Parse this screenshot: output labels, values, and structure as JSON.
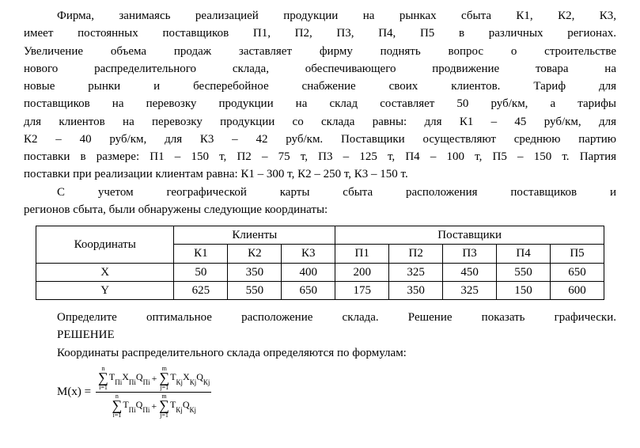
{
  "para1_l1": "Фирма, занимаясь реализацией продукции на рынках сбыта К1, К2, К3,",
  "para1_l2": "имеет постоянных поставщиков П1, П2, П3, П4, П5 в различных регионах.",
  "para1_l3": "Увеличение объема продаж заставляет фирму поднять вопрос о строительстве",
  "para1_l4": "нового распределительного склада, обеспечивающего продвижение товара на",
  "para1_l5": "новые рынки и бесперебойное снабжение своих клиентов. Тариф для",
  "para1_l6": "поставщиков на перевозку продукции на склад составляет 50 руб/км, а тарифы",
  "para1_l7": "для клиентов на перевозку продукции со склада равны: для К1 – 45 руб/км, для",
  "para1_l8": "К2 – 40 руб/км, для К3 – 42 руб/км. Поставщики осуществляют среднюю партию",
  "para1_l9": "поставки в размере: П1 – 150 т, П2 – 75 т, П3 – 125 т, П4 – 100 т, П5 – 150 т. Партия",
  "para1_l10": "поставки при реализации клиентам равна: К1 – 300 т, К2 – 250 т, К3 – 150 т.",
  "para2_l1": "С учетом географической карты сбыта расположения поставщиков и",
  "para2_l2": "регионов сбыта, были обнаружены следующие координаты:",
  "table": {
    "row_header": "Координаты",
    "group_clients": "Клиенты",
    "group_suppliers": "Поставщики",
    "clients": [
      "К1",
      "К2",
      "К3"
    ],
    "suppliers": [
      "П1",
      "П2",
      "П3",
      "П4",
      "П5"
    ],
    "row_x_label": "X",
    "row_y_label": "Y",
    "row_x": [
      "50",
      "350",
      "400",
      "200",
      "325",
      "450",
      "550",
      "650"
    ],
    "row_y": [
      "625",
      "550",
      "650",
      "175",
      "350",
      "325",
      "150",
      "600"
    ]
  },
  "para3": "Определите оптимальное расположение склада. Решение показать графически.",
  "heading_solution": "РЕШЕНИЕ",
  "para4": "Координаты распределительного склада определяются по формулам:",
  "formula": {
    "label": "M(x) =",
    "sum_top_n": "n",
    "sum_bot_i": "i=1",
    "sum_top_m": "m",
    "sum_bot_j": "j=1",
    "t1": "T",
    "t1_sub": "Пi",
    "x1": "X",
    "x1_sub": "Пi",
    "q1": "Q",
    "q1_sub": "Пi",
    "t2": "T",
    "t2_sub": "Кj",
    "x2": "X",
    "x2_sub": "Кj",
    "q2": "Q",
    "q2_sub": "Кj",
    "t3": "T",
    "t3_sub": "Пi",
    "q3": "Q",
    "q3_sub": "Пi",
    "t4": "T",
    "t4_sub": "Кj",
    "q4": "Q",
    "q4_sub": "Кj",
    "plus": "+"
  }
}
